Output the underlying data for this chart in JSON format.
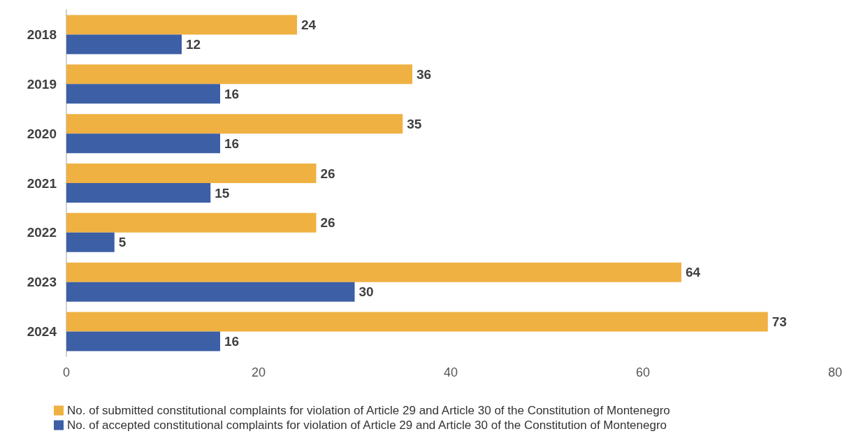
{
  "chart_data": {
    "type": "bar",
    "orientation": "horizontal",
    "categories": [
      "2018",
      "2019",
      "2020",
      "2021",
      "2022",
      "2023",
      "2024"
    ],
    "series": [
      {
        "name": "No. of submitted constitutional complaints for violation of Article 29 and Article 30 of the Constitution of Montenegro",
        "color": "#efb142",
        "values": [
          24,
          36,
          35,
          26,
          26,
          64,
          73
        ]
      },
      {
        "name": "No. of accepted constitutional complaints for violation of Article 29 and Article 30 of the Constitution of Montenegro",
        "color": "#3c5fa5",
        "values": [
          12,
          16,
          16,
          15,
          5,
          30,
          16
        ]
      }
    ],
    "xlim": [
      0,
      80
    ],
    "xticks": [
      0,
      20,
      40,
      60,
      80
    ],
    "grid": false,
    "legend": "bottom",
    "data_labels": true
  }
}
